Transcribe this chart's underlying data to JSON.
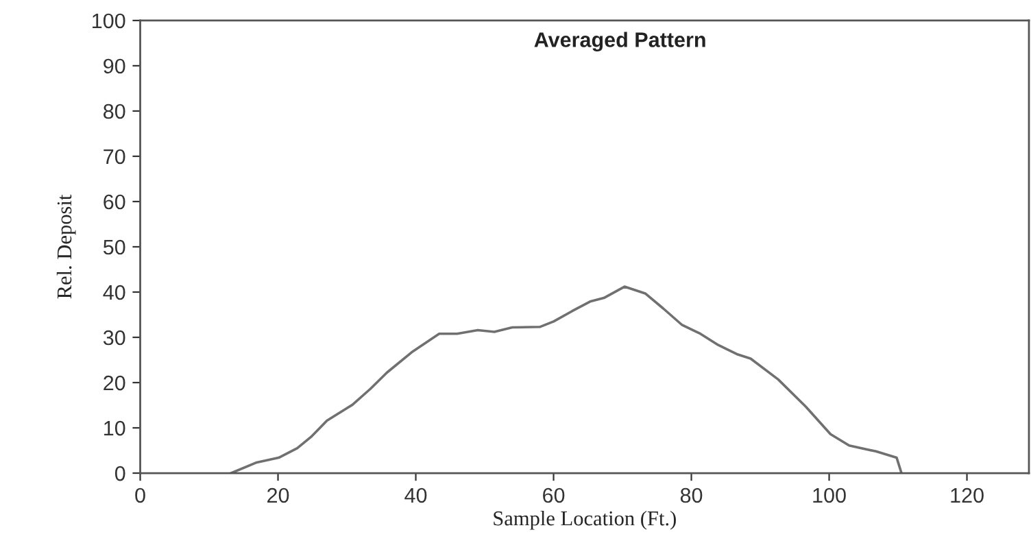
{
  "chart_data": {
    "type": "line",
    "title": "Averaged Pattern",
    "xlabel": "Sample Location (Ft.)",
    "ylabel": "Rel. Deposit",
    "x": [
      13.2,
      16.8,
      20.1,
      22.8,
      24.8,
      27.1,
      30.8,
      33.4,
      35.8,
      39.4,
      43.4,
      46,
      49,
      51.4,
      54,
      58,
      60,
      62.7,
      65.3,
      67.3,
      70.3,
      73.3,
      75.9,
      78.6,
      81.3,
      83.9,
      86.6,
      88.6,
      92.6,
      96.6,
      100.2,
      102.9,
      106.8,
      109.8,
      110.5
    ],
    "series": [
      {
        "color": "#707070",
        "values": [
          0,
          2.3,
          3.4,
          5.5,
          8,
          11.6,
          15.1,
          18.6,
          22.2,
          26.7,
          30.8,
          30.8,
          31.6,
          31.2,
          32.2,
          32.3,
          33.5,
          35.8,
          37.9,
          38.7,
          41.2,
          39.7,
          36.4,
          32.8,
          30.8,
          28.3,
          26.3,
          25.3,
          20.7,
          14.7,
          8.6,
          6.1,
          4.8,
          3.4,
          0
        ]
      }
    ],
    "xlim": [
      0,
      129
    ],
    "xticks": [
      0,
      20,
      40,
      60,
      80,
      100,
      120
    ],
    "ylim": [
      0,
      100
    ],
    "yticks": [
      0,
      10,
      20,
      30,
      40,
      50,
      60,
      70,
      80,
      90,
      100
    ],
    "grid": false,
    "marker": "none",
    "line_style": "solid"
  }
}
